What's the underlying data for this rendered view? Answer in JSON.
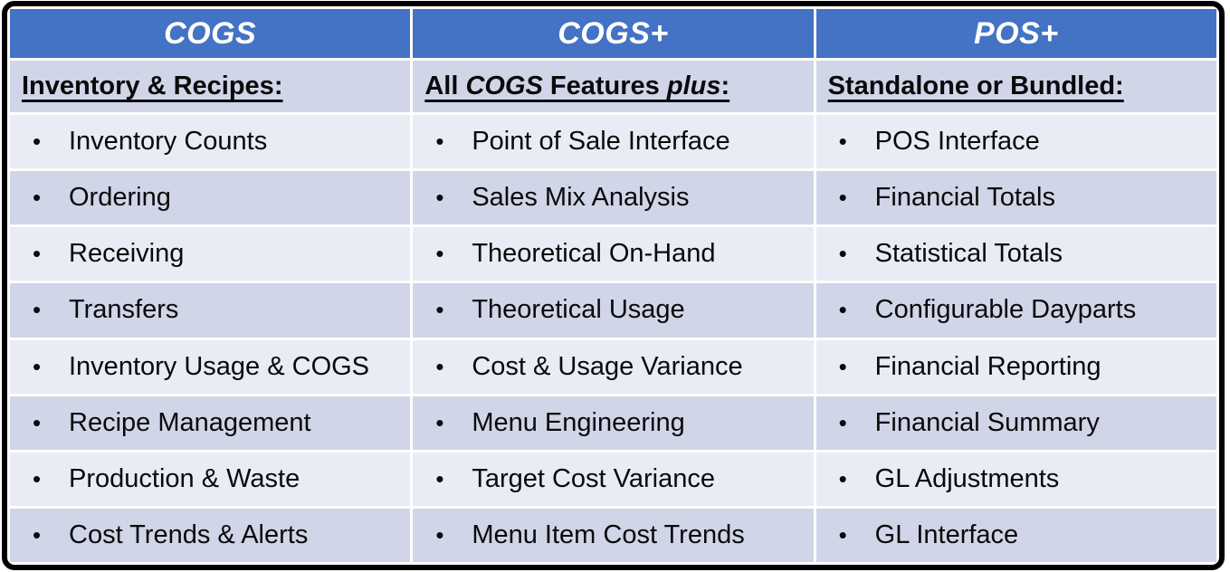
{
  "table": {
    "bullet": "•",
    "colors": {
      "header_bg": "#4472C4",
      "header_text": "#FFFFFF",
      "band_dark": "#D0D5E8",
      "band_light": "#E9EBF5",
      "outer_border": "#000000",
      "body_text": "#0A0A0A"
    },
    "columns": [
      {
        "header": "COGS",
        "subheader_segments": [
          {
            "text": "Inventory & Recipes:",
            "italic": false
          }
        ],
        "items": [
          "Inventory Counts",
          "Ordering",
          "Receiving",
          "Transfers",
          "Inventory Usage & COGS",
          "Recipe Management",
          "Production & Waste",
          "Cost Trends & Alerts"
        ]
      },
      {
        "header": "COGS+",
        "subheader_segments": [
          {
            "text": "All ",
            "italic": false
          },
          {
            "text": "COGS",
            "italic": true
          },
          {
            "text": " Features ",
            "italic": false
          },
          {
            "text": "plus",
            "italic": true
          },
          {
            "text": ":",
            "italic": false
          }
        ],
        "items": [
          "Point of Sale Interface",
          "Sales Mix Analysis",
          "Theoretical On-Hand",
          "Theoretical Usage",
          "Cost & Usage Variance",
          "Menu Engineering",
          "Target Cost Variance",
          "Menu Item Cost Trends"
        ]
      },
      {
        "header": "POS+",
        "subheader_segments": [
          {
            "text": "Standalone or Bundled:",
            "italic": false
          }
        ],
        "items": [
          "POS Interface",
          "Financial Totals",
          "Statistical Totals",
          "Configurable Dayparts",
          "Financial Reporting",
          "Financial Summary",
          "GL Adjustments",
          "GL Interface"
        ]
      }
    ]
  }
}
